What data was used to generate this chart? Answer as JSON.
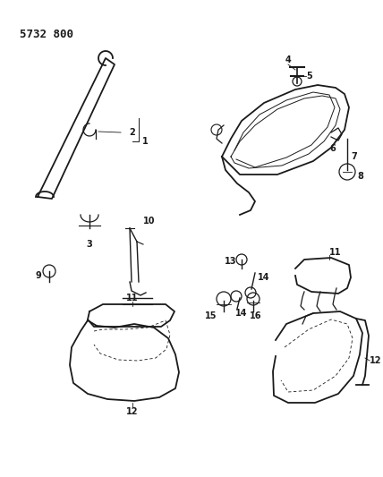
{
  "title": "5732 800",
  "bg_color": "#ffffff",
  "line_color": "#1a1a1a",
  "figsize": [
    4.28,
    5.33
  ],
  "dpi": 100
}
